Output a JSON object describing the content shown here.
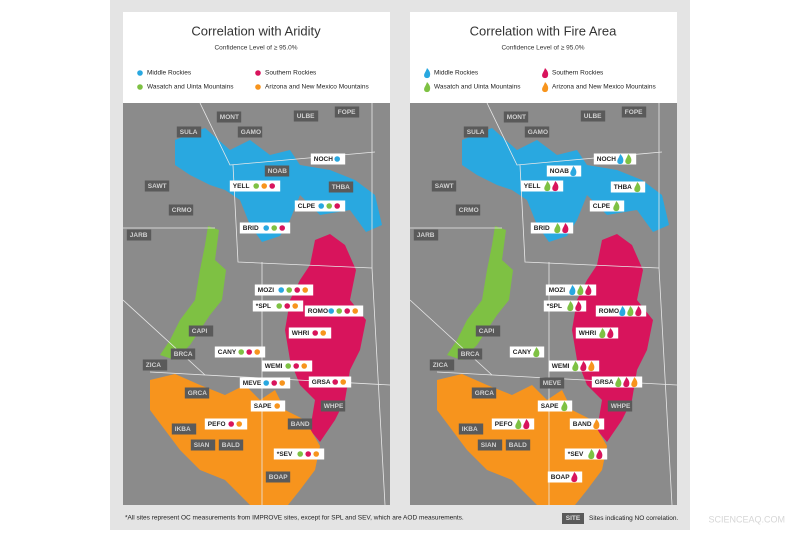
{
  "panels": [
    {
      "title": "Correlation with Aridity",
      "subtitle": "Confidence Level of ≥ 95.0%",
      "icon": "dot",
      "legend": [
        {
          "name": "Middle Rockies",
          "color": "#29a8e0"
        },
        {
          "name": "Southern Rockies",
          "color": "#d8145c"
        },
        {
          "name": "Wasatch and Uinta Mountains",
          "color": "#7ec143"
        },
        {
          "name": "Arizona and New Mexico Mountains",
          "color": "#f7941d"
        }
      ],
      "sites": [
        {
          "label": "MONT",
          "markers": []
        },
        {
          "label": "GAMO",
          "markers": []
        },
        {
          "label": "ULBE",
          "markers": []
        },
        {
          "label": "FOPE",
          "markers": []
        },
        {
          "label": "SULA",
          "markers": []
        },
        {
          "label": "NOCH",
          "markers": [
            "#29a8e0"
          ]
        },
        {
          "label": "NOAB",
          "markers": []
        },
        {
          "label": "YELL",
          "markers": [
            "#7ec143",
            "#f7941d",
            "#d8145c"
          ]
        },
        {
          "label": "SAWT",
          "markers": []
        },
        {
          "label": "THBA",
          "markers": []
        },
        {
          "label": "CRMO",
          "markers": []
        },
        {
          "label": "CLPE",
          "markers": [
            "#29a8e0",
            "#7ec143",
            "#d8145c"
          ]
        },
        {
          "label": "JARB",
          "markers": []
        },
        {
          "label": "BRID",
          "markers": [
            "#29a8e0",
            "#7ec143",
            "#d8145c"
          ]
        },
        {
          "label": "MOZI",
          "markers": [
            "#29a8e0",
            "#7ec143",
            "#d8145c",
            "#f7941d"
          ]
        },
        {
          "label": "*SPL",
          "markers": [
            "#7ec143",
            "#d8145c",
            "#f7941d"
          ]
        },
        {
          "label": "ROMO",
          "markers": [
            "#29a8e0",
            "#7ec143",
            "#d8145c",
            "#f7941d"
          ]
        },
        {
          "label": "CAPI",
          "markers": []
        },
        {
          "label": "WHRI",
          "markers": [
            "#d8145c",
            "#f7941d"
          ]
        },
        {
          "label": "CANY",
          "markers": [
            "#7ec143",
            "#d8145c",
            "#f7941d"
          ]
        },
        {
          "label": "BRCA",
          "markers": []
        },
        {
          "label": "ZICA",
          "markers": []
        },
        {
          "label": "WEMI",
          "markers": [
            "#7ec143",
            "#d8145c",
            "#f7941d"
          ]
        },
        {
          "label": "MEVE",
          "markers": [
            "#29a8e0",
            "#d8145c",
            "#f7941d"
          ]
        },
        {
          "label": "GRSA",
          "markers": [
            "#d8145c",
            "#f7941d"
          ]
        },
        {
          "label": "GRCA",
          "markers": []
        },
        {
          "label": "SAPE",
          "markers": [
            "#f7941d"
          ]
        },
        {
          "label": "WHPE",
          "markers": []
        },
        {
          "label": "PEFO",
          "markers": [
            "#d8145c",
            "#f7941d"
          ]
        },
        {
          "label": "IKBA",
          "markers": []
        },
        {
          "label": "BAND",
          "markers": []
        },
        {
          "label": "SIAN",
          "markers": []
        },
        {
          "label": "BALD",
          "markers": []
        },
        {
          "label": "*SEV",
          "markers": [
            "#7ec143",
            "#d8145c",
            "#f7941d"
          ]
        },
        {
          "label": "BOAP",
          "markers": []
        }
      ]
    },
    {
      "title": "Correlation with Fire Area",
      "subtitle": "Confidence Level of ≥ 95.0%",
      "icon": "flame",
      "legend": [
        {
          "name": "Middle Rockies",
          "color": "#29a8e0"
        },
        {
          "name": "Southern Rockies",
          "color": "#d8145c"
        },
        {
          "name": "Wasatch and Uinta Mountains",
          "color": "#7ec143"
        },
        {
          "name": "Arizona and New Mexico Mountains",
          "color": "#f7941d"
        }
      ],
      "sites": [
        {
          "label": "MONT",
          "markers": []
        },
        {
          "label": "GAMO",
          "markers": []
        },
        {
          "label": "ULBE",
          "markers": []
        },
        {
          "label": "FOPE",
          "markers": []
        },
        {
          "label": "SULA",
          "markers": []
        },
        {
          "label": "NOCH",
          "markers": [
            "#29a8e0",
            "#7ec143"
          ]
        },
        {
          "label": "NOAB",
          "markers": [
            "#29a8e0"
          ]
        },
        {
          "label": "YELL",
          "markers": [
            "#7ec143",
            "#d8145c"
          ]
        },
        {
          "label": "SAWT",
          "markers": []
        },
        {
          "label": "THBA",
          "markers": [
            "#7ec143"
          ]
        },
        {
          "label": "CRMO",
          "markers": []
        },
        {
          "label": "CLPE",
          "markers": [
            "#7ec143"
          ]
        },
        {
          "label": "JARB",
          "markers": []
        },
        {
          "label": "BRID",
          "markers": [
            "#7ec143",
            "#d8145c"
          ]
        },
        {
          "label": "MOZI",
          "markers": [
            "#29a8e0",
            "#7ec143",
            "#d8145c"
          ]
        },
        {
          "label": "*SPL",
          "markers": [
            "#7ec143",
            "#d8145c"
          ]
        },
        {
          "label": "ROMO",
          "markers": [
            "#29a8e0",
            "#7ec143",
            "#d8145c"
          ]
        },
        {
          "label": "CAPI",
          "markers": []
        },
        {
          "label": "WHRI",
          "markers": [
            "#7ec143",
            "#d8145c"
          ]
        },
        {
          "label": "CANY",
          "markers": [
            "#7ec143"
          ]
        },
        {
          "label": "BRCA",
          "markers": []
        },
        {
          "label": "ZICA",
          "markers": []
        },
        {
          "label": "WEMI",
          "markers": [
            "#7ec143",
            "#d8145c",
            "#f7941d"
          ]
        },
        {
          "label": "MEVE",
          "markers": []
        },
        {
          "label": "GRSA",
          "markers": [
            "#7ec143",
            "#d8145c",
            "#f7941d"
          ]
        },
        {
          "label": "GRCA",
          "markers": []
        },
        {
          "label": "SAPE",
          "markers": [
            "#7ec143"
          ]
        },
        {
          "label": "WHPE",
          "markers": []
        },
        {
          "label": "PEFO",
          "markers": [
            "#7ec143",
            "#d8145c"
          ]
        },
        {
          "label": "IKBA",
          "markers": []
        },
        {
          "label": "BAND",
          "markers": [
            "#f7941d"
          ]
        },
        {
          "label": "SIAN",
          "markers": []
        },
        {
          "label": "BALD",
          "markers": []
        },
        {
          "label": "*SEV",
          "markers": [
            "#7ec143",
            "#d8145c"
          ]
        },
        {
          "label": "BOAP",
          "markers": [
            "#d8145c"
          ]
        }
      ]
    }
  ],
  "footnote": "*All sites represent OC measurements from IMPROVE sites, except for SPL and SEV, which are AOD measurements.",
  "key": {
    "badge": "SITE",
    "text": "Sites indicating NO correlation."
  },
  "watermark": "SCIENCEAQ.COM"
}
